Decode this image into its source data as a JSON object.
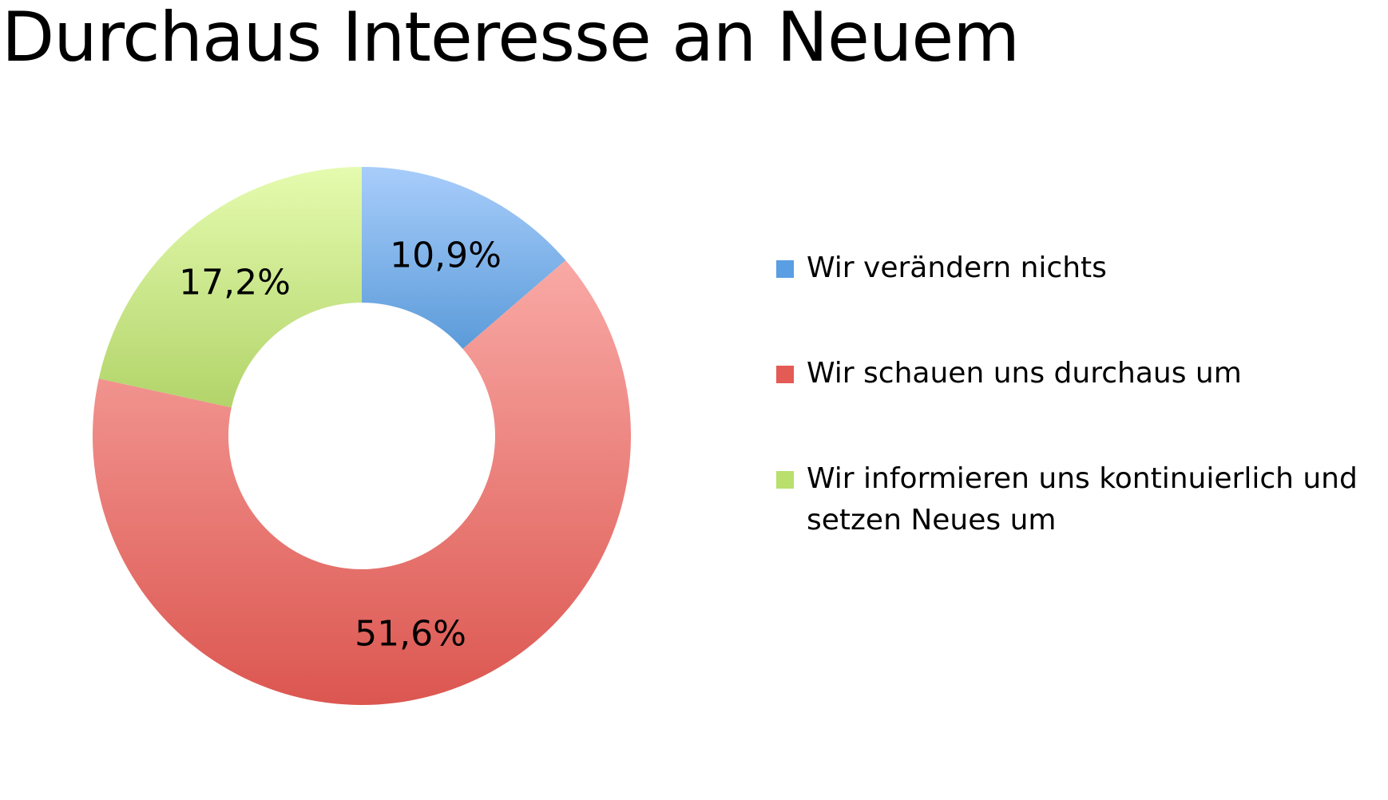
{
  "title": "Durchaus Interesse an Neuem",
  "colors": {
    "blue_light": "#a8cdfb",
    "blue_dark": "#5b9bd9",
    "red_light": "#f9a9a5",
    "red_dark": "#dc5650",
    "green_light": "#e5fbaf",
    "green_dark": "#b2d46a",
    "swatch_blue": "#5a9ee4",
    "swatch_red": "#e45a55",
    "swatch_green": "#b9df6d"
  },
  "chart_data": {
    "type": "pie",
    "variant": "donut",
    "title": "Durchaus Interesse an Neuem",
    "labels": [
      "Wir verändern nichts",
      "Wir schauen uns durchaus um",
      "Wir informieren uns kontinuierlich und setzen Neues um"
    ],
    "values": [
      10.9,
      51.6,
      17.2
    ],
    "value_labels": [
      "10,9%",
      "51,6%",
      "17,2%"
    ],
    "legend_position": "right"
  }
}
